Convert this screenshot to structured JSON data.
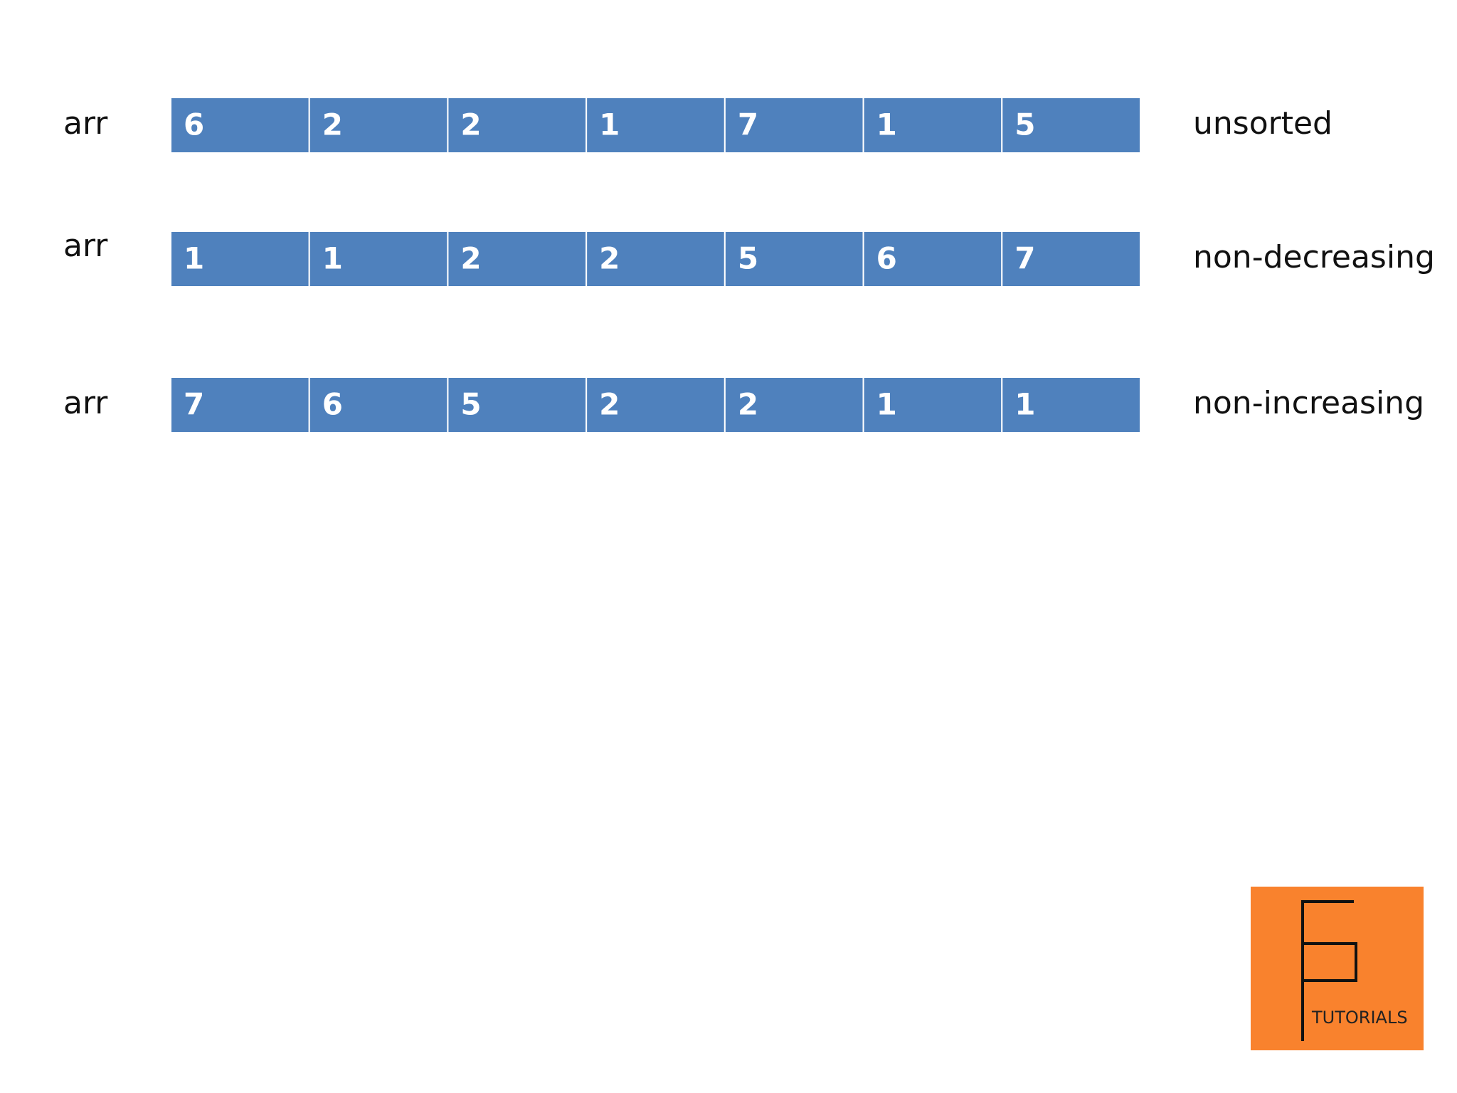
{
  "rows": [
    {
      "label": "arr",
      "cells": [
        6,
        2,
        2,
        1,
        7,
        1,
        5
      ],
      "caption": "unsorted"
    },
    {
      "label": "arr",
      "cells": [
        1,
        1,
        2,
        2,
        5,
        6,
        7
      ],
      "caption": "non-decreasing"
    },
    {
      "label": "arr",
      "cells": [
        7,
        6,
        5,
        2,
        2,
        1,
        1
      ],
      "caption": "non-increasing"
    }
  ],
  "logo": {
    "text": "TUTORIALS"
  }
}
